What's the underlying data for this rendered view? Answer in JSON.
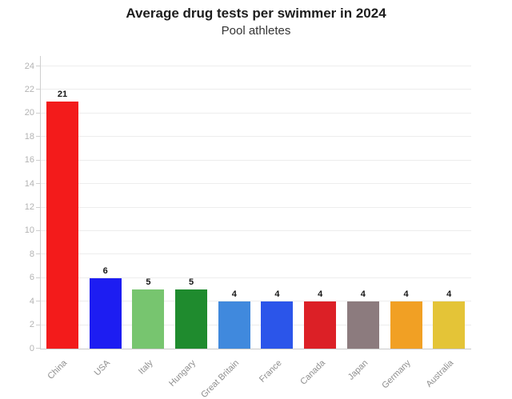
{
  "header": {
    "title": "Average drug tests per swimmer in 2024",
    "subtitle": "Pool athletes"
  },
  "chart_data": {
    "type": "bar",
    "title": "Average drug tests per swimmer in 2024",
    "subtitle": "Pool athletes",
    "categories": [
      "China",
      "USA",
      "Italy",
      "Hungary",
      "Great Britain",
      "France",
      "Canada",
      "Japan",
      "Germany",
      "Australia"
    ],
    "values": [
      21,
      6,
      5,
      5,
      4,
      4,
      4,
      4,
      4,
      4
    ],
    "bar_colors": [
      "#f31b1b",
      "#1d1df2",
      "#77c56f",
      "#1f8b2e",
      "#4089dd",
      "#2b55ea",
      "#dc2026",
      "#8c7b7e",
      "#f1a024",
      "#e4c437"
    ],
    "xlabel": "",
    "ylabel": "",
    "ylim": [
      0,
      24
    ],
    "yticks": [
      0,
      2,
      4,
      6,
      8,
      10,
      12,
      14,
      16,
      18,
      20,
      22,
      24
    ],
    "grid": "horizontal",
    "legend": "none",
    "value_labels_shown": true
  },
  "colors": {
    "background": "#ffffff",
    "grid": "#ededed",
    "axis": "#cfcfcf",
    "ytick_label": "#b3b3b3",
    "xtick_label": "#8f8f8f",
    "value_label": "#161616",
    "title": "#1d1d1d",
    "subtitle": "#343434"
  }
}
